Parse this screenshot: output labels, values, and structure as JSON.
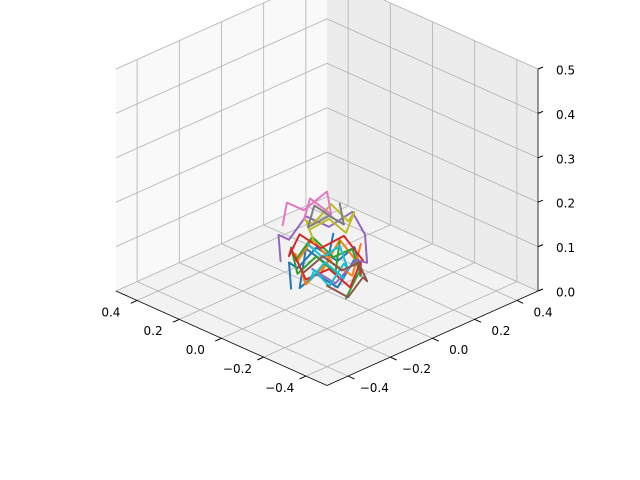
{
  "chart_data": {
    "type": "line3d",
    "title": "",
    "xlabel": "",
    "ylabel": "",
    "zlabel": "",
    "grid": true,
    "view": {
      "elev": 45,
      "azim": 45
    },
    "xlim": [
      -0.5,
      0.5
    ],
    "ylim": [
      -0.5,
      0.5
    ],
    "zlim": [
      0,
      0.5
    ],
    "x_ticks": [
      -0.4,
      -0.2,
      0.0,
      0.2,
      0.4
    ],
    "x_tick_labels": [
      "−0.4",
      "−0.2",
      "0.0",
      "0.2",
      "0.4"
    ],
    "y_ticks": [
      -0.4,
      -0.2,
      0.0,
      0.2,
      0.4
    ],
    "y_tick_labels": [
      "−0.4",
      "−0.2",
      "0.0",
      "0.2",
      "0.4"
    ],
    "z_ticks": [
      0.0,
      0.1,
      0.2,
      0.3,
      0.4,
      0.5
    ],
    "z_tick_labels": [
      "0.0",
      "0.1",
      "0.2",
      "0.3",
      "0.4",
      "0.5"
    ],
    "palette": [
      "#1f77b4",
      "#ff7f0e",
      "#2ca02c",
      "#d62728",
      "#9467bd",
      "#8c564b",
      "#e377c2",
      "#7f7f7f",
      "#bcbd22",
      "#17becf"
    ],
    "panel_colors": {
      "floor": "#f2f2f2",
      "left_wall": "#f9f9f9",
      "right_wall": "#ececec"
    },
    "series": [
      {
        "color": "#1f77b4",
        "points": [
          [
            -0.12,
            0.05,
            0.02
          ],
          [
            -0.08,
            0.1,
            0.06
          ],
          [
            -0.02,
            0.12,
            0.03
          ],
          [
            0.04,
            0.09,
            0.07
          ],
          [
            0.09,
            0.04,
            0.04
          ],
          [
            0.11,
            -0.02,
            0.08
          ],
          [
            0.08,
            -0.08,
            0.05
          ],
          [
            0.02,
            -0.11,
            0.09
          ],
          [
            -0.05,
            -0.1,
            0.04
          ],
          [
            -0.1,
            -0.05,
            0.07
          ],
          [
            -0.12,
            0.01,
            0.03
          ],
          [
            -0.06,
            0.04,
            0.1
          ],
          [
            0.0,
            0.0,
            0.06
          ],
          [
            0.06,
            0.03,
            0.11
          ]
        ]
      },
      {
        "color": "#ff7f0e",
        "points": [
          [
            0.1,
            0.08,
            0.03
          ],
          [
            0.05,
            0.12,
            0.08
          ],
          [
            -0.03,
            0.11,
            0.05
          ],
          [
            -0.09,
            0.06,
            0.09
          ],
          [
            -0.11,
            -0.01,
            0.04
          ],
          [
            -0.07,
            -0.08,
            0.1
          ],
          [
            0.0,
            -0.12,
            0.06
          ],
          [
            0.07,
            -0.09,
            0.11
          ],
          [
            0.11,
            -0.03,
            0.05
          ],
          [
            0.09,
            0.03,
            0.09
          ],
          [
            0.03,
            0.06,
            0.02
          ]
        ]
      },
      {
        "color": "#2ca02c",
        "points": [
          [
            -0.04,
            -0.13,
            0.02
          ],
          [
            0.03,
            -0.12,
            0.06
          ],
          [
            0.09,
            -0.07,
            0.03
          ],
          [
            0.12,
            0.0,
            0.07
          ],
          [
            0.1,
            0.07,
            0.04
          ],
          [
            0.04,
            0.11,
            0.09
          ],
          [
            -0.03,
            0.12,
            0.05
          ],
          [
            -0.09,
            0.08,
            0.1
          ],
          [
            -0.12,
            0.02,
            0.06
          ],
          [
            -0.1,
            -0.05,
            0.11
          ],
          [
            -0.05,
            -0.09,
            0.07
          ],
          [
            0.01,
            -0.05,
            0.12
          ]
        ]
      },
      {
        "color": "#d62728",
        "points": [
          [
            0.13,
            -0.04,
            0.05
          ],
          [
            0.12,
            0.04,
            0.09
          ],
          [
            0.07,
            0.1,
            0.06
          ],
          [
            0.0,
            0.13,
            0.1
          ],
          [
            -0.07,
            0.11,
            0.07
          ],
          [
            -0.12,
            0.05,
            0.11
          ],
          [
            -0.13,
            -0.03,
            0.06
          ],
          [
            -0.09,
            -0.1,
            0.09
          ],
          [
            -0.02,
            -0.13,
            0.04
          ],
          [
            0.05,
            -0.11,
            0.08
          ],
          [
            0.1,
            -0.06,
            0.03
          ]
        ]
      },
      {
        "color": "#9467bd",
        "points": [
          [
            -0.14,
            0.08,
            0.08
          ],
          [
            -0.1,
            0.13,
            0.12
          ],
          [
            -0.03,
            0.15,
            0.09
          ],
          [
            0.04,
            0.14,
            0.13
          ],
          [
            0.11,
            0.1,
            0.1
          ],
          [
            0.15,
            0.03,
            0.14
          ],
          [
            0.13,
            -0.05,
            0.11
          ],
          [
            0.08,
            -0.11,
            0.07
          ],
          [
            0.0,
            -0.14,
            0.1
          ],
          [
            -0.08,
            -0.12,
            0.06
          ],
          [
            -0.13,
            -0.06,
            0.09
          ]
        ]
      },
      {
        "color": "#17becf",
        "points": [
          [
            0.06,
            -0.02,
            0.02
          ],
          [
            0.03,
            0.04,
            0.05
          ],
          [
            -0.03,
            0.05,
            0.02
          ],
          [
            -0.06,
            0.0,
            0.06
          ],
          [
            -0.04,
            -0.05,
            0.03
          ],
          [
            0.02,
            -0.06,
            0.07
          ],
          [
            0.07,
            -0.03,
            0.04
          ],
          [
            0.08,
            0.02,
            0.08
          ],
          [
            0.05,
            0.07,
            0.05
          ],
          [
            -0.01,
            0.08,
            0.09
          ]
        ]
      },
      {
        "color": "#bcbd22",
        "points": [
          [
            -0.08,
            -0.02,
            0.13
          ],
          [
            -0.05,
            0.05,
            0.16
          ],
          [
            0.01,
            0.08,
            0.13
          ],
          [
            0.07,
            0.05,
            0.17
          ],
          [
            0.09,
            -0.01,
            0.14
          ],
          [
            0.06,
            -0.07,
            0.18
          ],
          [
            0.0,
            -0.09,
            0.15
          ],
          [
            -0.06,
            -0.07,
            0.19
          ],
          [
            -0.09,
            -0.01,
            0.16
          ]
        ]
      },
      {
        "color": "#8c564b",
        "points": [
          [
            0.02,
            0.13,
            0.01
          ],
          [
            0.08,
            0.1,
            0.04
          ],
          [
            0.12,
            0.05,
            0.01
          ],
          [
            0.13,
            -0.02,
            0.04
          ],
          [
            0.1,
            -0.09,
            0.02
          ],
          [
            0.04,
            -0.13,
            0.05
          ],
          [
            -0.03,
            -0.13,
            0.02
          ],
          [
            -0.09,
            -0.09,
            0.05
          ]
        ]
      },
      {
        "color": "#e377c2",
        "points": [
          [
            -0.11,
            0.1,
            0.15
          ],
          [
            -0.05,
            0.14,
            0.18
          ],
          [
            0.02,
            0.13,
            0.15
          ],
          [
            0.08,
            0.08,
            0.19
          ],
          [
            0.04,
            0.02,
            0.16
          ],
          [
            -0.02,
            0.06,
            0.2
          ],
          [
            -0.08,
            0.03,
            0.17
          ]
        ]
      },
      {
        "color": "#7f7f7f",
        "points": [
          [
            0.12,
            0.09,
            0.12
          ],
          [
            0.07,
            0.13,
            0.15
          ],
          [
            0.01,
            0.1,
            0.12
          ],
          [
            0.05,
            0.04,
            0.15
          ],
          [
            0.11,
            0.03,
            0.12
          ],
          [
            0.14,
            0.08,
            0.15
          ]
        ]
      }
    ]
  }
}
